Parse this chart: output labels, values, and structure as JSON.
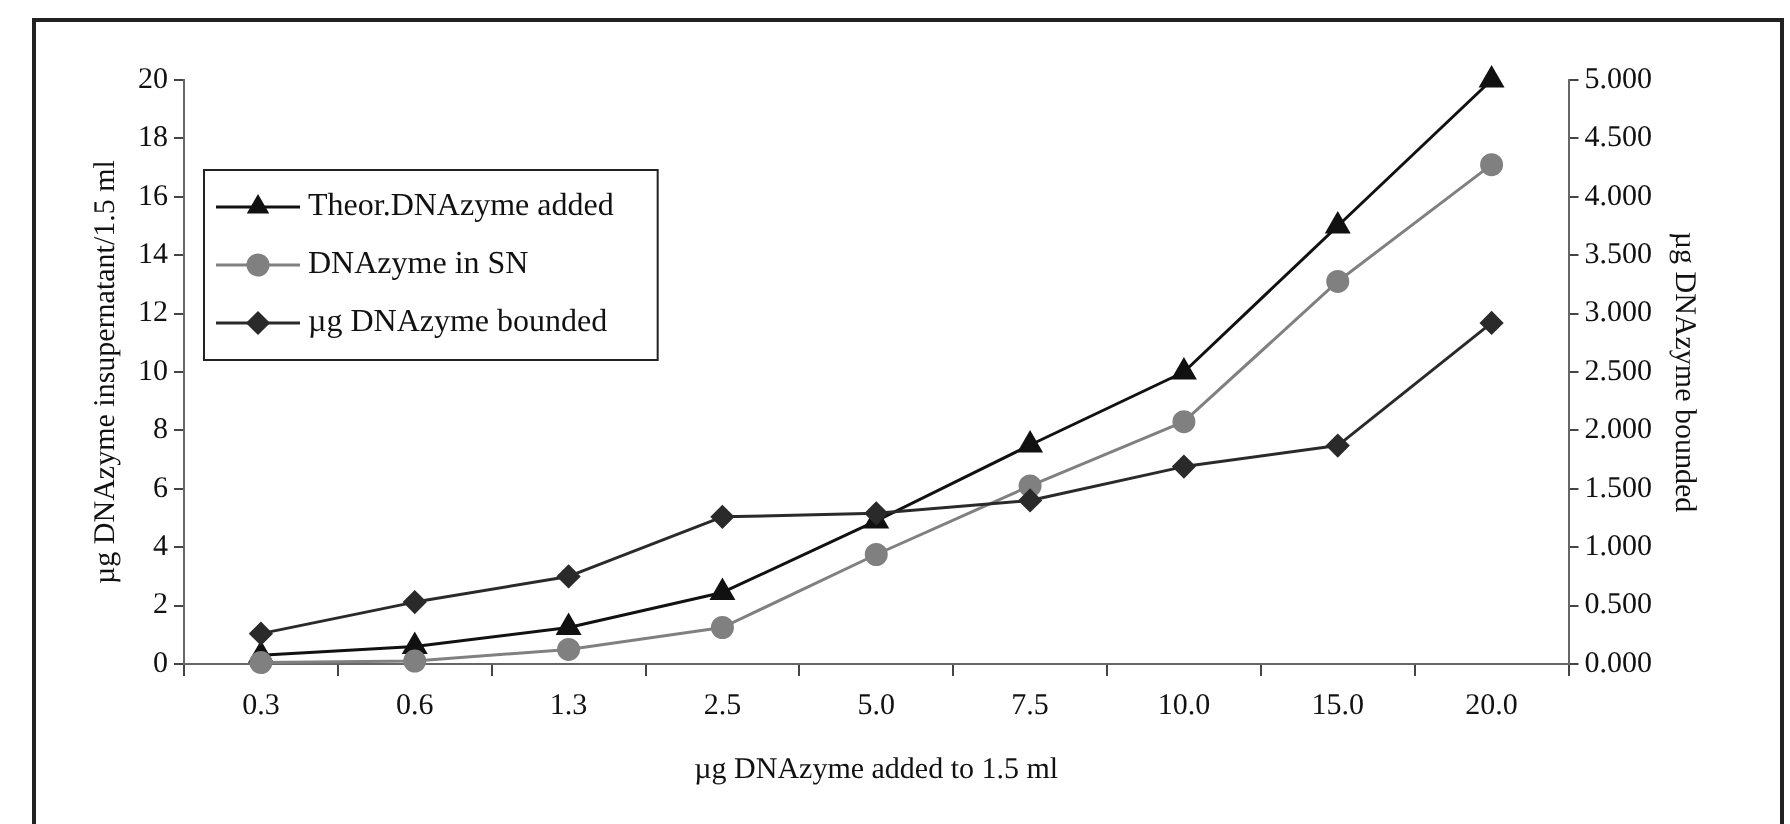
{
  "chart_data": {
    "type": "line",
    "xlabel": "µg DNAzyme added to 1.5 ml",
    "ylabel": "µg DNAzyme insupernatant/1.5 ml",
    "y2label": "µg DNAzyme bounded",
    "categories": [
      "0.3",
      "0.6",
      "1.3",
      "2.5",
      "5.0",
      "7.5",
      "10.0",
      "15.0",
      "20.0"
    ],
    "series": [
      {
        "name": "Theor.DNAzyme added",
        "color": "#111111",
        "marker": "triangle",
        "values": [
          0.3,
          0.6,
          1.25,
          2.45,
          4.9,
          7.5,
          10,
          15,
          20
        ]
      },
      {
        "name": "DNAzyme in SN",
        "color": "#808080",
        "marker": "circle",
        "values": [
          0.05,
          0.1,
          0.5,
          1.25,
          3.75,
          6.1,
          8.3,
          13.1,
          17.1
        ]
      },
      {
        "name": "µg DNAzyme bounded",
        "color": "#2a2a2a",
        "marker": "diamond",
        "axis": "y2",
        "values": [
          0.26,
          0.53,
          0.75,
          1.26,
          1.29,
          1.4,
          1.69,
          1.87,
          2.92
        ]
      }
    ],
    "ylim": [
      0,
      20
    ],
    "yticks": [
      0,
      2,
      4,
      6,
      8,
      10,
      12,
      14,
      16,
      18,
      20
    ],
    "y2lim": [
      0,
      5
    ],
    "y2ticks": [
      {
        "value": 0,
        "label": "0.000"
      },
      {
        "value": 0.5,
        "label": "0.500"
      },
      {
        "value": 1,
        "label": "1.000"
      },
      {
        "value": 1.5,
        "label": "1.500"
      },
      {
        "value": 2,
        "label": "2.000"
      },
      {
        "value": 2.5,
        "label": "2.500"
      },
      {
        "value": 3,
        "label": "3.000"
      },
      {
        "value": 3.5,
        "label": "3.500"
      },
      {
        "value": 4,
        "label": "4.000"
      },
      {
        "value": 4.5,
        "label": "4.500"
      },
      {
        "value": 5,
        "label": "5.000"
      }
    ],
    "grid": false,
    "legend": "top left",
    "line_style": "solid"
  }
}
